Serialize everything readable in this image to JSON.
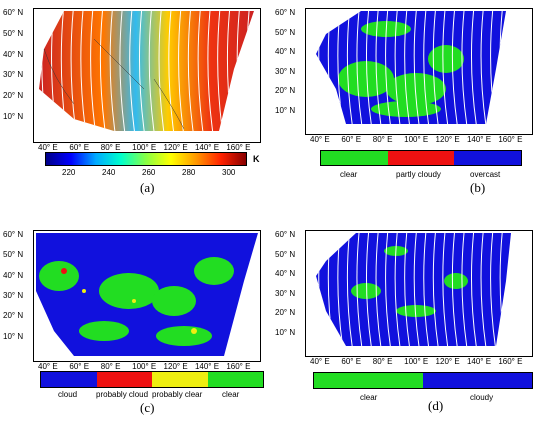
{
  "captions": [
    "(a)",
    "(b)",
    "(c)",
    "(d)"
  ],
  "lat_labels": [
    "60° N",
    "50° N",
    "40° N",
    "30° N",
    "20° N",
    "10° N"
  ],
  "lon_labels": [
    "40° E",
    "60° E",
    "80° E",
    "100° E",
    "120° E",
    "140° E",
    "160° E"
  ],
  "panel_a": {
    "colorbar_ticks": [
      "220",
      "240",
      "260",
      "280",
      "300"
    ],
    "unit": "K"
  },
  "panel_b": {
    "legend": [
      {
        "label": "clear",
        "color": "#22dd22"
      },
      {
        "label": "partly cloudy",
        "color": "#ee1111"
      },
      {
        "label": "overcast",
        "color": "#1111dd"
      }
    ]
  },
  "panel_c": {
    "legend": [
      {
        "label": "cloud",
        "color": "#1111dd"
      },
      {
        "label": "probably cloud",
        "color": "#ee1111"
      },
      {
        "label": "probably clear",
        "color": "#eeee11"
      },
      {
        "label": "clear",
        "color": "#22dd22"
      }
    ]
  },
  "panel_d": {
    "legend": [
      {
        "label": "clear",
        "color": "#22dd22"
      },
      {
        "label": "cloudy",
        "color": "#1111dd"
      }
    ]
  }
}
